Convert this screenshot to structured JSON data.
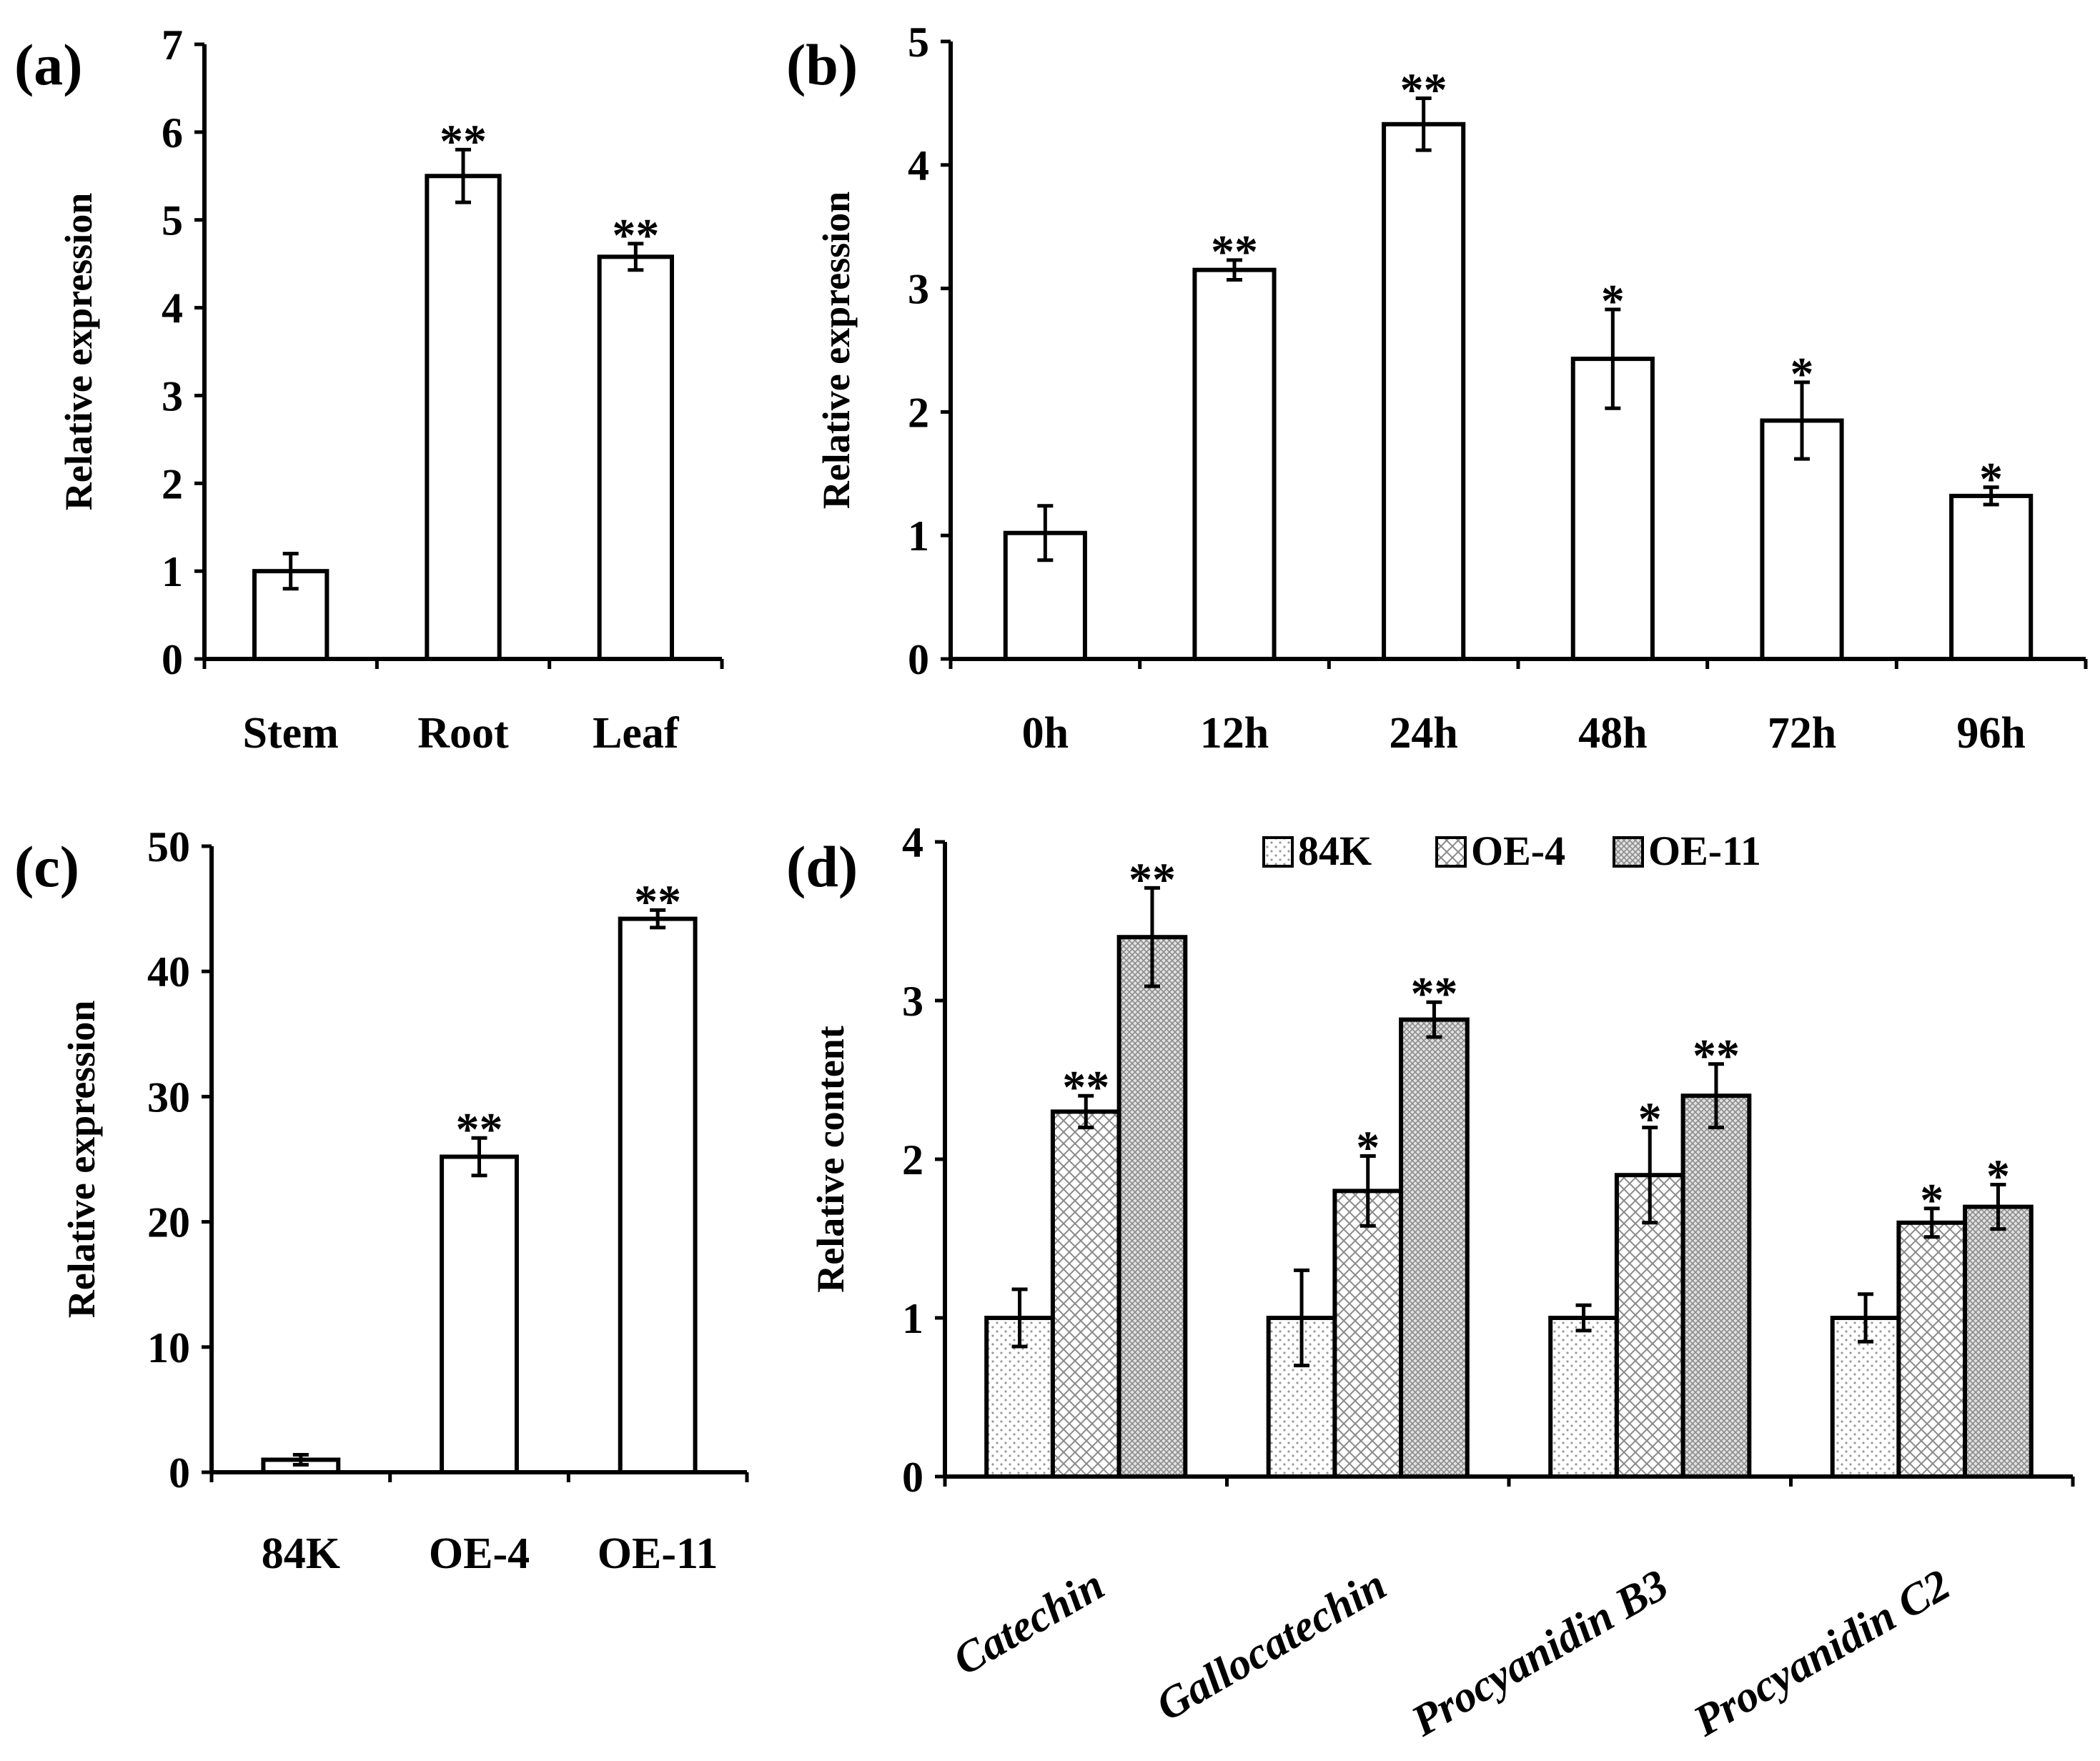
{
  "chart_data": [
    {
      "id": "a",
      "type": "bar",
      "panel_label": "(a)",
      "ylabel": "Relative expression",
      "xlabel": "",
      "ylim": [
        0,
        7
      ],
      "yticks": [
        0,
        1,
        2,
        3,
        4,
        5,
        6,
        7
      ],
      "categories": [
        "Stem",
        "Root",
        "Leaf"
      ],
      "series": [
        {
          "name": "",
          "fill": "white",
          "values": [
            1.0,
            5.5,
            4.58
          ],
          "errors": [
            0.2,
            0.3,
            0.15
          ],
          "significance": [
            "",
            "**",
            "**"
          ]
        }
      ]
    },
    {
      "id": "b",
      "type": "bar",
      "panel_label": "(b)",
      "ylabel": "Relative expression",
      "xlabel": "",
      "ylim": [
        0,
        5
      ],
      "yticks": [
        0,
        1,
        2,
        3,
        4,
        5
      ],
      "categories": [
        "0h",
        "12h",
        "24h",
        "48h",
        "72h",
        "96h"
      ],
      "series": [
        {
          "name": "",
          "fill": "white",
          "values": [
            1.02,
            3.15,
            4.33,
            2.43,
            1.93,
            1.32
          ],
          "errors": [
            0.22,
            0.08,
            0.21,
            0.4,
            0.31,
            0.07
          ],
          "significance": [
            "",
            "**",
            "**",
            "*",
            "*",
            "*"
          ]
        }
      ]
    },
    {
      "id": "c",
      "type": "bar",
      "panel_label": "(c)",
      "ylabel": "Relative expression",
      "xlabel": "",
      "ylim": [
        0,
        50
      ],
      "yticks": [
        0,
        10,
        20,
        30,
        40,
        50
      ],
      "categories": [
        "84K",
        "OE-4",
        "OE-11"
      ],
      "series": [
        {
          "name": "",
          "fill": "white",
          "values": [
            1.0,
            25.2,
            44.2
          ],
          "errors": [
            0.4,
            1.5,
            0.7
          ],
          "significance": [
            "",
            "**",
            "**"
          ]
        }
      ]
    },
    {
      "id": "d",
      "type": "bar",
      "panel_label": "(d)",
      "ylabel": "Relative content",
      "xlabel": "",
      "ylim": [
        0,
        4
      ],
      "yticks": [
        0,
        1,
        2,
        3,
        4
      ],
      "categories": [
        "Catechin",
        "Gallocatechin",
        "Procyanidin B3",
        "Procyanidin C2"
      ],
      "legend_position": "top",
      "series": [
        {
          "name": "84K",
          "fill": "dots",
          "values": [
            1.0,
            1.0,
            1.0,
            1.0
          ],
          "errors": [
            0.18,
            0.3,
            0.08,
            0.15
          ],
          "significance": [
            "",
            "",
            "",
            ""
          ]
        },
        {
          "name": "OE-4",
          "fill": "crosshatch",
          "values": [
            2.3,
            1.8,
            1.9,
            1.6
          ],
          "errors": [
            0.1,
            0.22,
            0.3,
            0.09
          ],
          "significance": [
            "**",
            "*",
            "*",
            "*"
          ]
        },
        {
          "name": "OE-11",
          "fill": "dense",
          "values": [
            3.4,
            2.88,
            2.4,
            1.7
          ],
          "errors": [
            0.31,
            0.11,
            0.2,
            0.14
          ],
          "significance": [
            "**",
            "**",
            "**",
            "*"
          ]
        }
      ]
    }
  ]
}
